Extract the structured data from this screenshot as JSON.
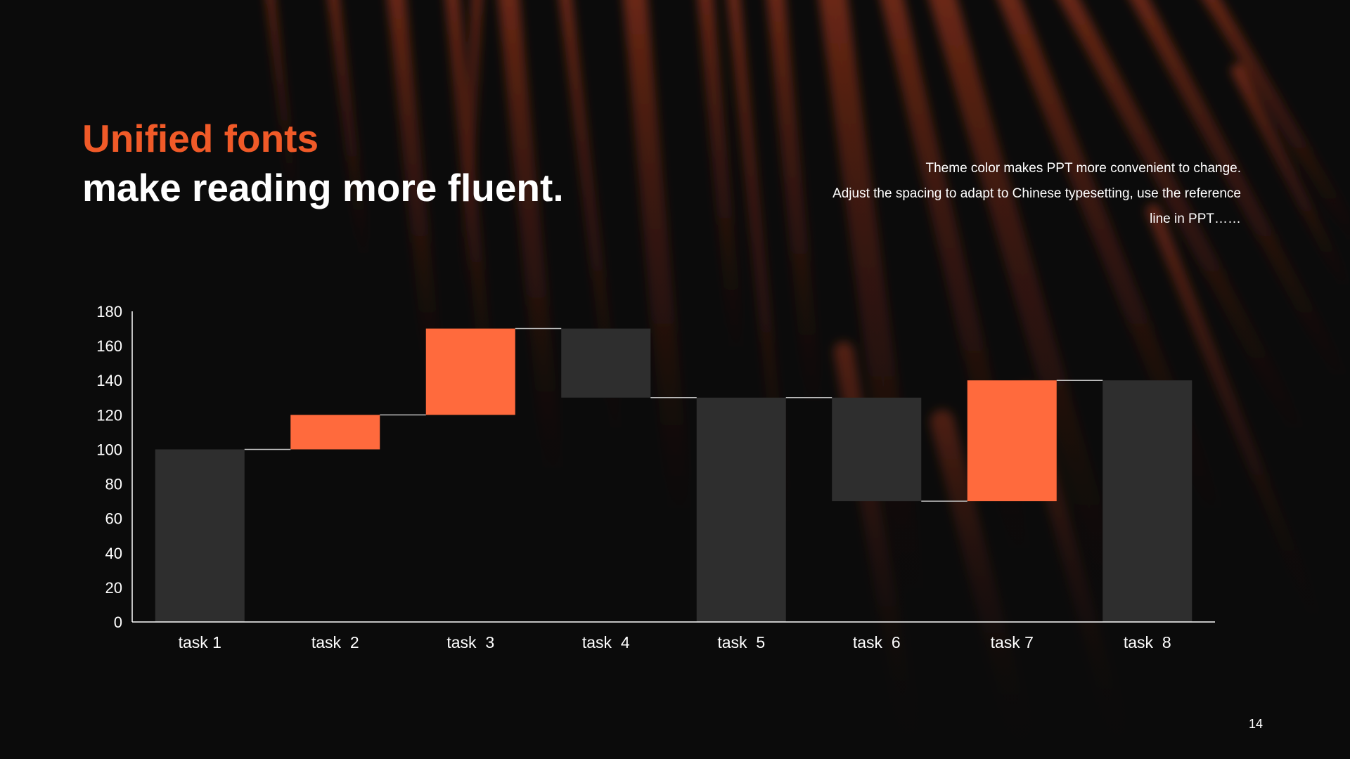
{
  "title": {
    "accent": "Unified fonts",
    "main": "make reading more fluent."
  },
  "description": {
    "lines": [
      "Theme color makes PPT more convenient  to change.",
      "Adjust  the  spacing  to adapt to Chinese  typesetting,  use  the reference",
      "line  in  PPT……"
    ]
  },
  "page_number": "14",
  "colors": {
    "background": "#0b0b0b",
    "accent": "#f05a28",
    "bar_orange": "#ff6a3d",
    "bar_gray": "#2e2e2e",
    "axis": "#ffffff",
    "text": "#ffffff"
  },
  "chart_data": {
    "type": "bar",
    "subtype": "waterfall",
    "categories": [
      "task 1",
      "task  2",
      "task  3",
      "task  4",
      "task  5",
      "task  6",
      "task 7",
      "task  8"
    ],
    "bars": [
      {
        "start": 0,
        "end": 100,
        "kind": "total"
      },
      {
        "start": 100,
        "end": 120,
        "kind": "increase"
      },
      {
        "start": 120,
        "end": 170,
        "kind": "increase"
      },
      {
        "start": 170,
        "end": 130,
        "kind": "decrease"
      },
      {
        "start": 0,
        "end": 130,
        "kind": "total"
      },
      {
        "start": 130,
        "end": 70,
        "kind": "decrease"
      },
      {
        "start": 70,
        "end": 140,
        "kind": "increase"
      },
      {
        "start": 0,
        "end": 140,
        "kind": "total"
      }
    ],
    "ylim": [
      0,
      180
    ],
    "yticks": [
      0,
      20,
      40,
      60,
      80,
      100,
      120,
      140,
      160,
      180
    ],
    "connectors": true,
    "grid": false,
    "legend": "none"
  }
}
